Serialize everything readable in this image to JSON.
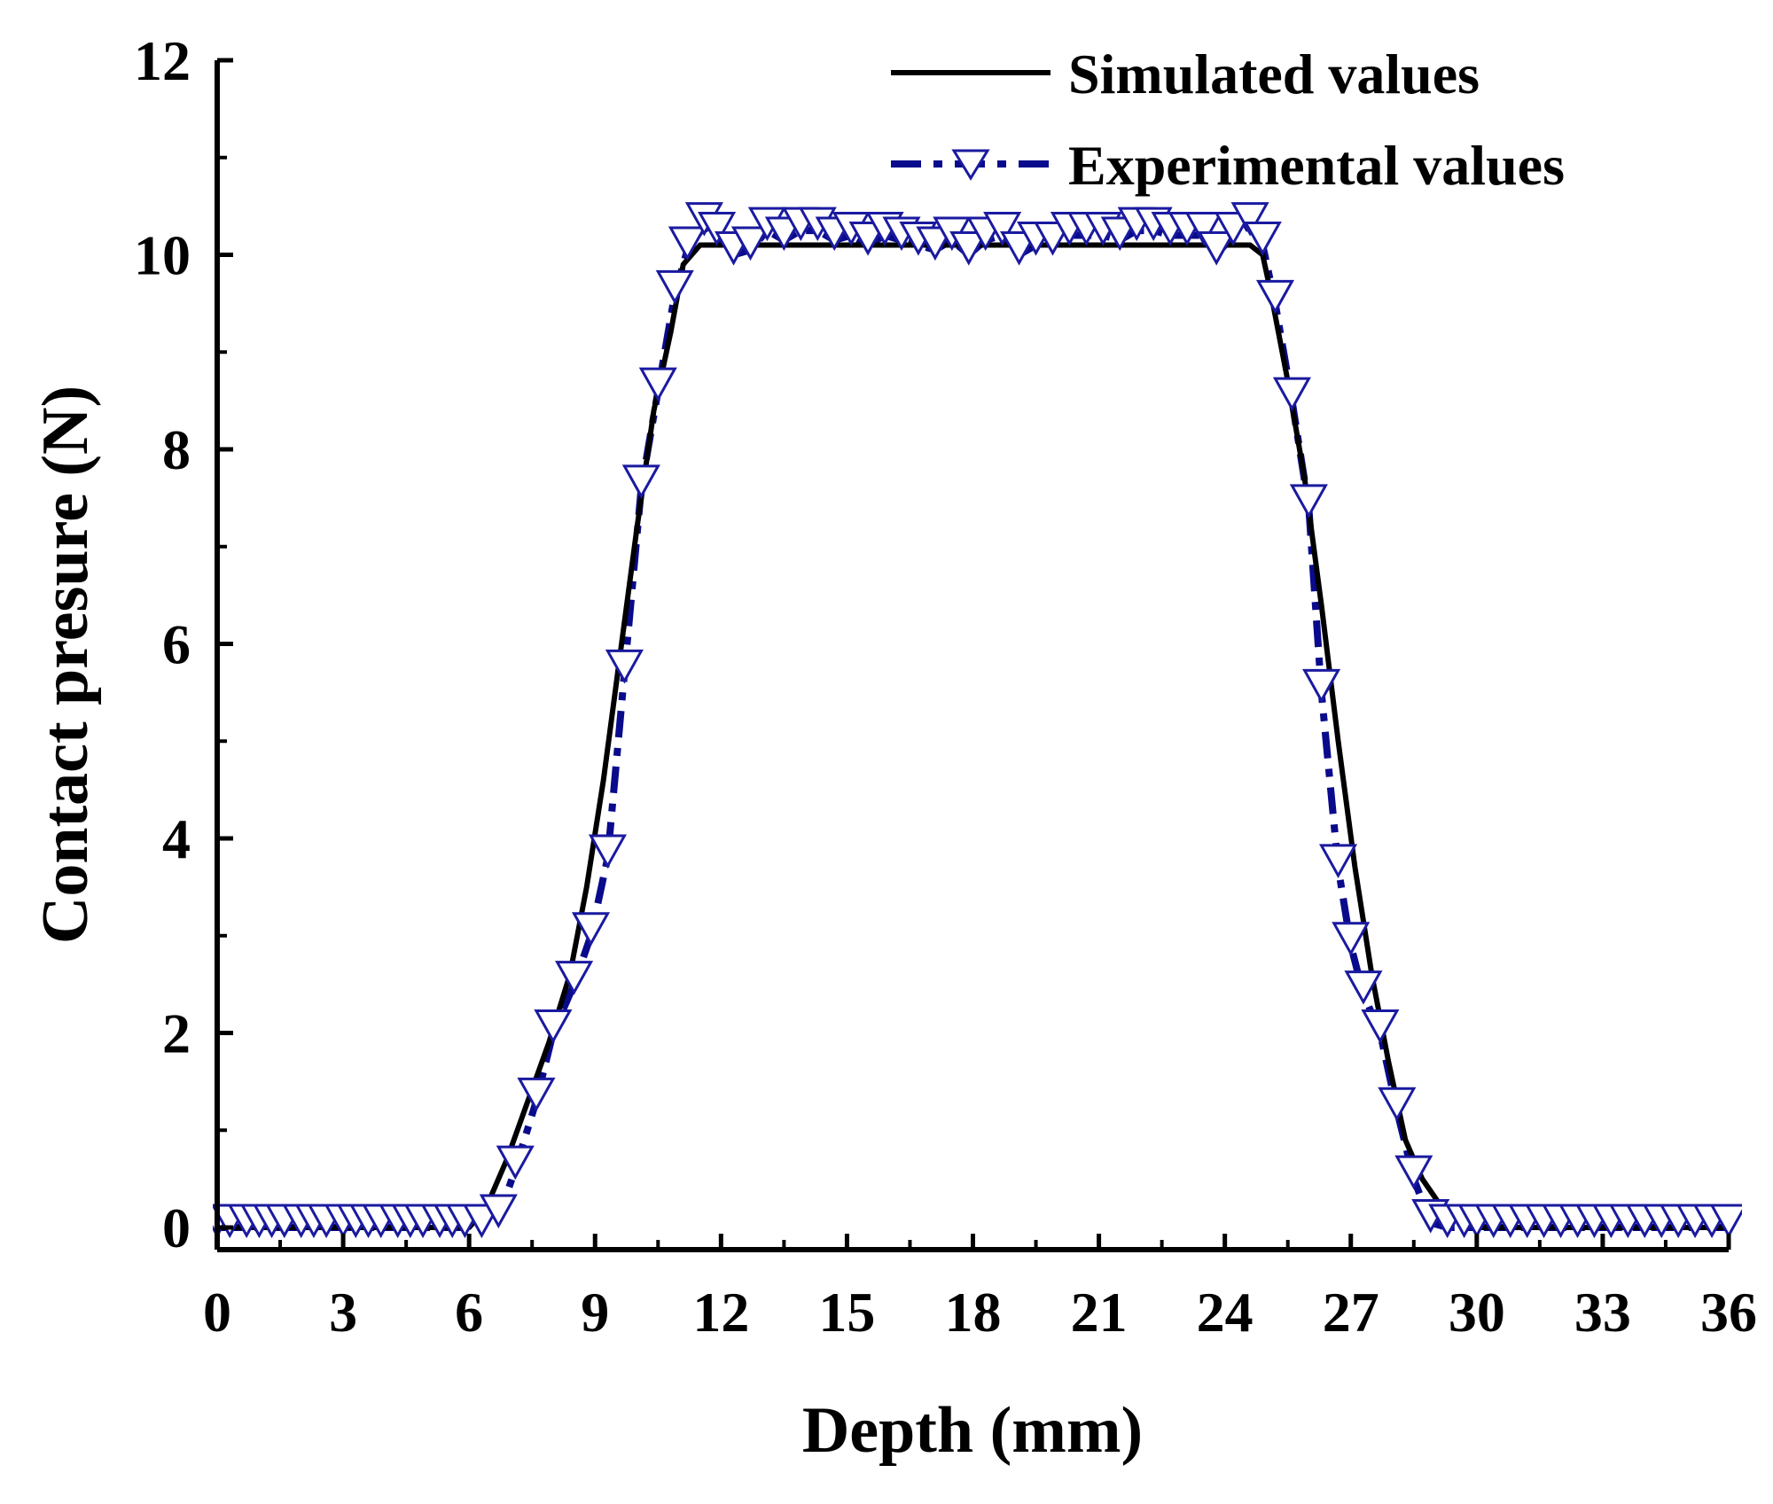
{
  "chart_data": {
    "type": "line",
    "title": "",
    "xlabel": "Depth (mm)",
    "ylabel": "Contact presure (N)",
    "xlim": [
      0,
      36
    ],
    "ylim": [
      -0.5,
      12
    ],
    "xticks": [
      0,
      3,
      6,
      9,
      12,
      15,
      18,
      21,
      24,
      27,
      30,
      33,
      36
    ],
    "yticks": [
      0,
      2,
      4,
      6,
      8,
      10,
      12
    ],
    "grid": false,
    "legend_position": "top-right",
    "colors": {
      "axis": "#000000",
      "simulated": "#000000",
      "experimental": "#0a0a8c",
      "marker_fill": "#ffffff",
      "marker_stroke": "#1a1aa0"
    },
    "series": [
      {
        "name": "Simulated values",
        "style": "solid",
        "x": [
          0,
          6.0,
          6.4,
          6.9,
          7.4,
          7.9,
          8.4,
          8.8,
          9.2,
          9.6,
          10.0,
          10.4,
          10.8,
          11.1,
          11.5,
          12.0,
          15.0,
          18.0,
          21.0,
          24.0,
          24.6,
          24.9,
          25.1,
          25.5,
          25.9,
          26.3,
          26.7,
          27.1,
          27.5,
          27.9,
          28.3,
          28.7,
          29.1,
          29.5,
          30.0,
          36.0
        ],
        "values": [
          0,
          0,
          0.2,
          0.7,
          1.3,
          1.9,
          2.6,
          3.5,
          4.6,
          5.9,
          7.2,
          8.4,
          9.2,
          9.9,
          10.1,
          10.1,
          10.1,
          10.1,
          10.1,
          10.1,
          10.1,
          10.0,
          9.6,
          8.7,
          7.7,
          6.4,
          5.0,
          3.7,
          2.6,
          1.7,
          0.9,
          0.5,
          0.25,
          0.1,
          0,
          0
        ]
      },
      {
        "name": "Experimental values",
        "style": "dash-dot",
        "marker": "triangle-down",
        "x": [
          0,
          0.3,
          0.7,
          1.0,
          1.3,
          1.6,
          2.0,
          2.3,
          2.6,
          3.0,
          3.3,
          3.6,
          3.9,
          4.3,
          4.6,
          4.9,
          5.3,
          5.6,
          5.9,
          6.3,
          6.7,
          7.1,
          7.6,
          8.0,
          8.5,
          8.9,
          9.3,
          9.7,
          10.1,
          10.5,
          10.9,
          11.2,
          11.6,
          11.9,
          12.3,
          12.7,
          13.1,
          13.5,
          13.9,
          14.3,
          14.7,
          15.1,
          15.5,
          15.9,
          16.3,
          16.7,
          17.1,
          17.5,
          17.9,
          18.3,
          18.7,
          19.1,
          19.5,
          19.9,
          20.3,
          20.7,
          21.1,
          21.5,
          21.9,
          22.3,
          22.7,
          23.1,
          23.5,
          23.8,
          24.2,
          24.6,
          24.9,
          25.2,
          25.6,
          26.0,
          26.3,
          26.7,
          27.0,
          27.3,
          27.7,
          28.1,
          28.5,
          28.9,
          29.3,
          29.7,
          30.0,
          30.4,
          30.8,
          31.2,
          31.6,
          32.0,
          32.4,
          32.8,
          33.2,
          33.6,
          34.0,
          34.4,
          34.8,
          35.2,
          35.6,
          36.0
        ],
        "values": [
          0,
          0,
          0,
          0,
          0,
          0,
          0,
          0,
          0,
          0,
          0,
          0,
          0,
          0,
          0,
          0,
          0,
          0,
          0,
          0,
          0.1,
          0.6,
          1.3,
          2.0,
          2.5,
          3.0,
          3.8,
          5.7,
          7.6,
          8.6,
          9.6,
          10.05,
          10.3,
          10.2,
          10.0,
          10.05,
          10.25,
          10.15,
          10.25,
          10.25,
          10.15,
          10.2,
          10.1,
          10.2,
          10.15,
          10.1,
          10.05,
          10.15,
          10.0,
          10.15,
          10.2,
          10.0,
          10.1,
          10.1,
          10.2,
          10.2,
          10.2,
          10.15,
          10.25,
          10.25,
          10.2,
          10.2,
          10.2,
          10.0,
          10.2,
          10.3,
          10.1,
          9.5,
          8.5,
          7.4,
          5.5,
          3.7,
          2.9,
          2.4,
          2.0,
          1.2,
          0.5,
          0.05,
          0,
          0,
          0,
          0,
          0,
          0,
          0,
          0,
          0,
          0,
          0,
          0,
          0,
          0,
          0,
          0,
          0,
          0
        ]
      }
    ]
  }
}
